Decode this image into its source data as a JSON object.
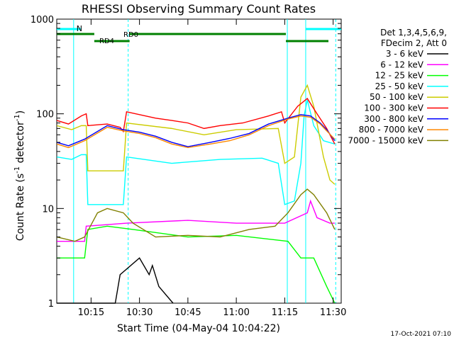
{
  "chart_data": {
    "type": "line",
    "title": "RHESSI Observing Summary Count Rates",
    "xlabel": "Start Time (04-May-04 10:04:22)",
    "ylabel_main": "Count Rate (s",
    "ylabel_sup1": "-1",
    "ylabel_mid": " detector",
    "ylabel_sup2": "-1",
    "ylabel_end": ")",
    "y_scale": "log",
    "ylim": [
      1,
      1000
    ],
    "xlim_minutes": [
      4.37,
      40.5
    ],
    "x_ticks": [
      {
        "label": "10:15",
        "minute": 15
      },
      {
        "label": "10:30",
        "minute": 30
      },
      {
        "label": "10:45",
        "minute": 45
      },
      {
        "label": "11:00",
        "minute": 60
      },
      {
        "label": "11:15",
        "minute": 75
      },
      {
        "label": "11:30",
        "minute": 90
      }
    ],
    "y_ticks": [
      {
        "label": "1",
        "value": 1
      },
      {
        "label": "10",
        "value": 10
      },
      {
        "label": "100",
        "value": 100
      },
      {
        "label": "1000",
        "value": 1000
      }
    ],
    "legend_header": [
      "Det 1,3,4,5,6,9,",
      "FDecim 2, Att 0"
    ],
    "legend_placement": "right",
    "series": [
      {
        "name": "3 - 6 keV",
        "color": "#000000",
        "points": [
          [
            4.4,
            1
          ],
          [
            22.5,
            1
          ],
          [
            24,
            2
          ],
          [
            30,
            3
          ],
          [
            33,
            2
          ],
          [
            34,
            2.5
          ],
          [
            36,
            1.5
          ],
          [
            40.4,
            1
          ]
        ]
      },
      {
        "name": "6 - 12 keV",
        "color": "#ff00ff",
        "points": [
          [
            4.4,
            4.5
          ],
          [
            13,
            4.5
          ],
          [
            13.5,
            6.5
          ],
          [
            26,
            7
          ],
          [
            45,
            7.5
          ],
          [
            60,
            7
          ],
          [
            75,
            7
          ],
          [
            82,
            9
          ],
          [
            83,
            12
          ],
          [
            85,
            8
          ],
          [
            89,
            7
          ],
          [
            90.5,
            7
          ]
        ]
      },
      {
        "name": "12 - 25 keV",
        "color": "#00ff00",
        "points": [
          [
            4.4,
            3
          ],
          [
            13,
            3
          ],
          [
            14,
            6
          ],
          [
            20,
            6.5
          ],
          [
            28,
            6
          ],
          [
            45,
            5
          ],
          [
            60,
            5.2
          ],
          [
            76,
            4.5
          ],
          [
            80,
            3
          ],
          [
            84,
            3
          ],
          [
            88,
            1.5
          ],
          [
            90.5,
            1
          ]
        ]
      },
      {
        "name": "25 - 50 keV",
        "color": "#00ffff",
        "points": [
          [
            4.4,
            35
          ],
          [
            9,
            33
          ],
          [
            12,
            37
          ],
          [
            13.5,
            37
          ],
          [
            14,
            11
          ],
          [
            25,
            11
          ],
          [
            26,
            35
          ],
          [
            40,
            30
          ],
          [
            55,
            33
          ],
          [
            68,
            34
          ],
          [
            73,
            30
          ],
          [
            75,
            11
          ],
          [
            78,
            12
          ],
          [
            80,
            30
          ],
          [
            81,
            95
          ],
          [
            82,
            140
          ],
          [
            84,
            75
          ],
          [
            87,
            52
          ],
          [
            90.5,
            48
          ]
        ]
      },
      {
        "name": "50 - 100 keV",
        "color": "#cccc00",
        "points": [
          [
            4.4,
            75
          ],
          [
            9,
            68
          ],
          [
            12,
            75
          ],
          [
            13.5,
            75
          ],
          [
            14,
            25
          ],
          [
            25,
            25
          ],
          [
            26,
            80
          ],
          [
            40,
            70
          ],
          [
            50,
            60
          ],
          [
            60,
            68
          ],
          [
            73,
            70
          ],
          [
            75,
            30
          ],
          [
            78,
            35
          ],
          [
            80,
            150
          ],
          [
            82,
            200
          ],
          [
            84,
            120
          ],
          [
            87,
            35
          ],
          [
            89,
            20
          ],
          [
            90.5,
            18
          ]
        ]
      },
      {
        "name": "100 - 300 keV",
        "color": "#ff0000",
        "points": [
          [
            4.4,
            85
          ],
          [
            8,
            78
          ],
          [
            12,
            95
          ],
          [
            13.5,
            100
          ],
          [
            14,
            75
          ],
          [
            20,
            78
          ],
          [
            24,
            72
          ],
          [
            25,
            65
          ],
          [
            26,
            105
          ],
          [
            35,
            90
          ],
          [
            40,
            85
          ],
          [
            45,
            80
          ],
          [
            50,
            70
          ],
          [
            55,
            75
          ],
          [
            62,
            80
          ],
          [
            70,
            95
          ],
          [
            74,
            105
          ],
          [
            75,
            80
          ],
          [
            79,
            120
          ],
          [
            82,
            145
          ],
          [
            85,
            100
          ],
          [
            88,
            70
          ],
          [
            90.5,
            48
          ]
        ]
      },
      {
        "name": "300 - 800 keV",
        "color": "#0000ff",
        "points": [
          [
            4.4,
            50
          ],
          [
            8,
            46
          ],
          [
            13,
            54
          ],
          [
            20,
            75
          ],
          [
            25,
            68
          ],
          [
            30,
            64
          ],
          [
            35,
            58
          ],
          [
            40,
            50
          ],
          [
            45,
            45
          ],
          [
            52,
            50
          ],
          [
            58,
            55
          ],
          [
            64,
            62
          ],
          [
            70,
            78
          ],
          [
            76,
            90
          ],
          [
            80,
            98
          ],
          [
            83,
            95
          ],
          [
            86,
            80
          ],
          [
            88,
            68
          ],
          [
            90.5,
            52
          ]
        ]
      },
      {
        "name": "800 - 7000 keV",
        "color": "#ff8800",
        "points": [
          [
            4.4,
            48
          ],
          [
            8,
            44
          ],
          [
            13,
            52
          ],
          [
            20,
            72
          ],
          [
            25,
            66
          ],
          [
            30,
            62
          ],
          [
            35,
            56
          ],
          [
            40,
            48
          ],
          [
            45,
            44
          ],
          [
            52,
            48
          ],
          [
            58,
            52
          ],
          [
            64,
            60
          ],
          [
            70,
            75
          ],
          [
            76,
            88
          ],
          [
            80,
            95
          ],
          [
            83,
            92
          ],
          [
            86,
            78
          ],
          [
            88,
            66
          ],
          [
            90.5,
            54
          ]
        ]
      },
      {
        "name": "7000 - 15000 keV",
        "color": "#808000",
        "points": [
          [
            4.4,
            5
          ],
          [
            10,
            4.5
          ],
          [
            13,
            5
          ],
          [
            17,
            9
          ],
          [
            20,
            10
          ],
          [
            25,
            9
          ],
          [
            28,
            7
          ],
          [
            35,
            5
          ],
          [
            45,
            5.2
          ],
          [
            55,
            5
          ],
          [
            64,
            6
          ],
          [
            72,
            6.5
          ],
          [
            76,
            9
          ],
          [
            80,
            14
          ],
          [
            82,
            16
          ],
          [
            84,
            14
          ],
          [
            88,
            9
          ],
          [
            90.5,
            6
          ]
        ]
      }
    ],
    "annotations": {
      "n_label": "N",
      "rd0_label": "RD0",
      "rd4_label": "RD4",
      "vertical_markers_minutes": [
        9.6,
        26.5,
        75.8,
        81.5,
        90.8
      ]
    }
  },
  "footer": {
    "timestamp": "17-Oct-2021 07:10"
  }
}
